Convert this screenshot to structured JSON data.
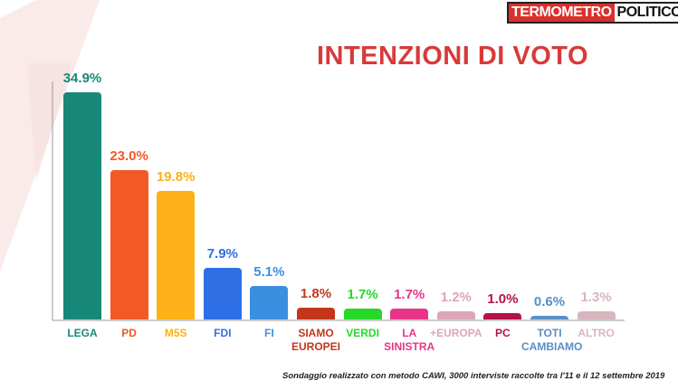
{
  "chart_data": {
    "type": "bar",
    "title": "INTENZIONI DI VOTO",
    "brand": [
      "TERMOMETRO",
      "POLITICO"
    ],
    "note": "Sondaggio realizzato con metodo CAWI, 3000 interviste raccolte tra l'11 e il 12 settembre 2019",
    "categories": [
      "LEGA",
      "PD",
      "M5S",
      "FDI",
      "FI",
      "SIAMO EUROPEI",
      "VERDI",
      "LA SINISTRA",
      "+EUROPA",
      "PC",
      "TOTI CAMBIAMO",
      "ALTRO"
    ],
    "values": [
      34.9,
      23.0,
      19.8,
      7.9,
      5.1,
      1.8,
      1.7,
      1.7,
      1.2,
      1.0,
      0.6,
      1.3
    ],
    "value_labels": [
      "34.9%",
      "23.0%",
      "19.8%",
      "7.9%",
      "5.1%",
      "1.8%",
      "1.7%",
      "1.7%",
      "1.2%",
      "1.0%",
      "0.6%",
      "1.3%"
    ],
    "colors": [
      "#17877a",
      "#f15a24",
      "#fbb117",
      "#2f6fe6",
      "#3b8fe0",
      "#c4361c",
      "#27d82a",
      "#e8358a",
      "#dba6b9",
      "#b3124c",
      "#5a8ec8",
      "#d8b6be"
    ]
  }
}
